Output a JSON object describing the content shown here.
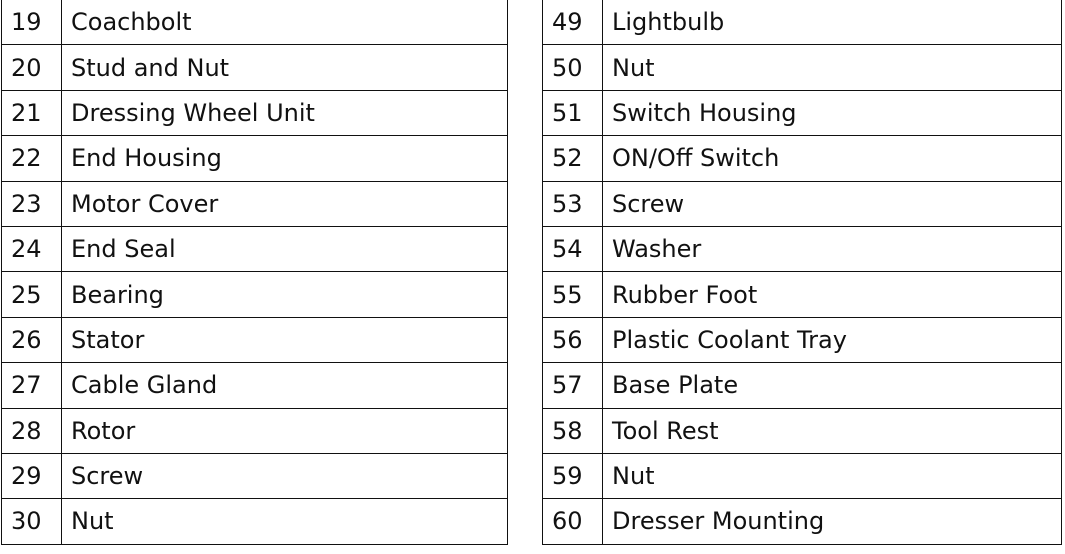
{
  "tables": [
    {
      "rows": [
        [
          "19",
          "Coachbolt"
        ],
        [
          "20",
          "Stud and Nut"
        ],
        [
          "21",
          "Dressing Wheel Unit"
        ],
        [
          "22",
          "End Housing"
        ],
        [
          "23",
          "Motor Cover"
        ],
        [
          "24",
          "End Seal"
        ],
        [
          "25",
          "Bearing"
        ],
        [
          "26",
          "Stator"
        ],
        [
          "27",
          "Cable Gland"
        ],
        [
          "28",
          "Rotor"
        ],
        [
          "29",
          "Screw"
        ],
        [
          "30",
          "Nut"
        ]
      ]
    },
    {
      "rows": [
        [
          "49",
          "Lightbulb"
        ],
        [
          "50",
          "Nut"
        ],
        [
          "51",
          "Switch Housing"
        ],
        [
          "52",
          "ON/Off Switch"
        ],
        [
          "53",
          "Screw"
        ],
        [
          "54",
          "Washer"
        ],
        [
          "55",
          "Rubber Foot"
        ],
        [
          "56",
          "Plastic Coolant Tray"
        ],
        [
          "57",
          "Base Plate"
        ],
        [
          "58",
          "Tool Rest"
        ],
        [
          "59",
          "Nut"
        ],
        [
          "60",
          "Dresser Mounting"
        ]
      ]
    }
  ]
}
